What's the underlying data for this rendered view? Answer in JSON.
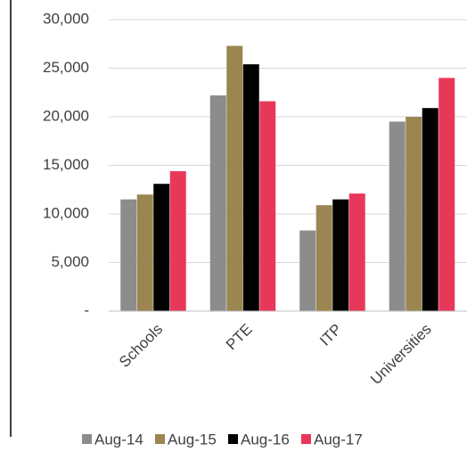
{
  "chart_data": {
    "type": "bar",
    "categories": [
      "Schools",
      "PTE",
      "ITP",
      "Universities"
    ],
    "series": [
      {
        "name": "Aug-14",
        "color": "#8c8c8c",
        "values": [
          11500,
          22200,
          8300,
          19500
        ]
      },
      {
        "name": "Aug-15",
        "color": "#9b8551",
        "values": [
          12000,
          27300,
          10900,
          20000
        ]
      },
      {
        "name": "Aug-16",
        "color": "#000000",
        "values": [
          13100,
          25400,
          11500,
          20900
        ]
      },
      {
        "name": "Aug-17",
        "color": "#e8385a",
        "values": [
          14400,
          21600,
          12100,
          24000
        ]
      }
    ],
    "ylim": [
      0,
      30000
    ],
    "yticks": [
      {
        "value": 0,
        "label": "-"
      },
      {
        "value": 5000,
        "label": "5,000"
      },
      {
        "value": 10000,
        "label": "10,000"
      },
      {
        "value": 15000,
        "label": "15,000"
      },
      {
        "value": 20000,
        "label": "20,000"
      },
      {
        "value": 25000,
        "label": "25,000"
      },
      {
        "value": 30000,
        "label": "30,000"
      }
    ],
    "grid": true,
    "legend": "bottom"
  }
}
